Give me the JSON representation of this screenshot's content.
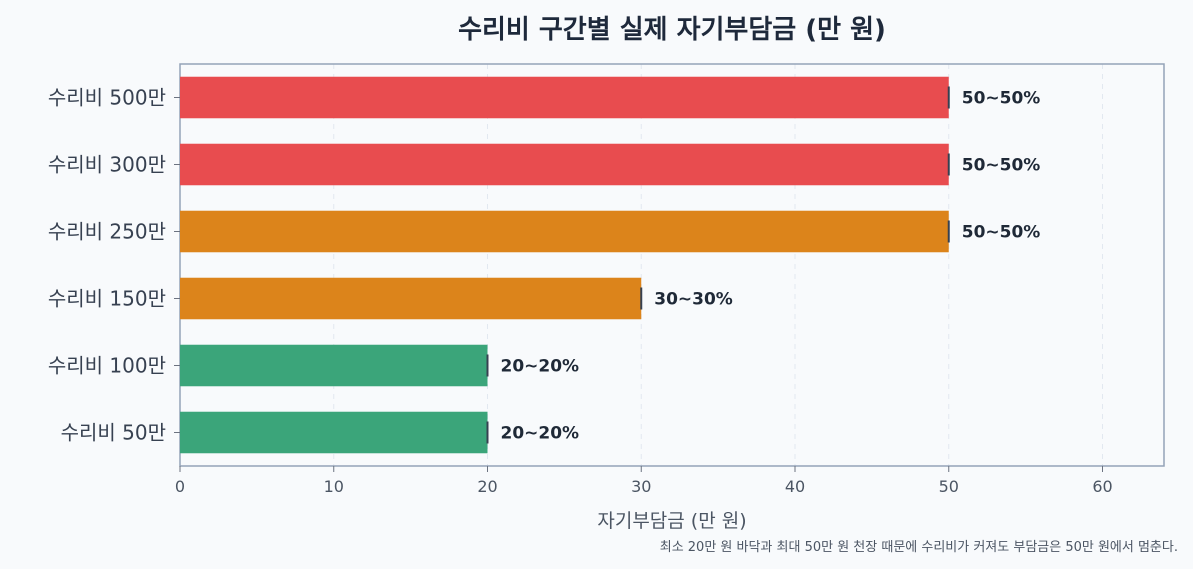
{
  "chart_data": {
    "type": "bar",
    "orientation": "horizontal",
    "title": "수리비 구간별 실제 자기부담금 (만 원)",
    "xlabel": "자기부담금 (만 원)",
    "ylabel": "",
    "xlim": [
      0,
      64
    ],
    "xticks": [
      0,
      10,
      20,
      30,
      40,
      50,
      60
    ],
    "grid": true,
    "categories": [
      "수리비 500만",
      "수리비 300만",
      "수리비 250만",
      "수리비 150만",
      "수리비 100만",
      "수리비 50만"
    ],
    "values": [
      50,
      50,
      50,
      30,
      20,
      20
    ],
    "value_labels": [
      "50~50%",
      "50~50%",
      "50~50%",
      "30~30%",
      "20~20%",
      "20~20%"
    ],
    "colors": [
      "#e84c4f",
      "#e84c4f",
      "#dc841b",
      "#dc841b",
      "#3ba57a",
      "#3ba57a"
    ],
    "footnote": "최소 20만 원 바닥과 최대 50만 원 천장 때문에 수리비가 커져도 부담금은 50만 원에서 멈춘다."
  }
}
